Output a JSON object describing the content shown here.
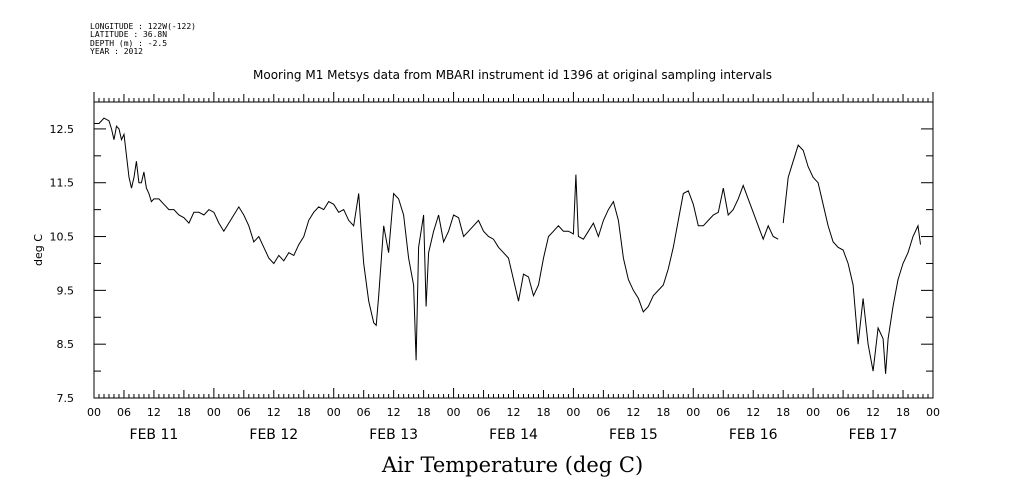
{
  "meta": {
    "longitude": "LONGITUDE : 122W(-122)",
    "latitude": "LATITUDE : 36.8N",
    "depth": "DEPTH (m) : -2.5",
    "year": "YEAR : 2012"
  },
  "chart_data": {
    "type": "line",
    "title": "Mooring M1 Metsys data from MBARI instrument id 1396 at original sampling intervals",
    "xlabel": "Air Temperature (deg C)",
    "ylabel": "deg C",
    "ylim": [
      7.5,
      13.0
    ],
    "xlim_hours": [
      0,
      168
    ],
    "y_ticks": [
      "7.5",
      "8.5",
      "9.5",
      "10.5",
      "11.5",
      "12.5"
    ],
    "x_hour_ticks": [
      "00",
      "06",
      "12",
      "18"
    ],
    "day_labels": [
      "FEB 11",
      "FEB 12",
      "FEB 13",
      "FEB 14",
      "FEB 15",
      "FEB 16",
      "FEB 17"
    ],
    "grid": false,
    "series": [
      {
        "x_unit": "hours since FEB 11 00",
        "points": [
          [
            0,
            12.6
          ],
          [
            1,
            12.6
          ],
          [
            2,
            12.7
          ],
          [
            3,
            12.65
          ],
          [
            3.5,
            12.5
          ],
          [
            4,
            12.3
          ],
          [
            4.5,
            12.55
          ],
          [
            5,
            12.5
          ],
          [
            5.5,
            12.3
          ],
          [
            6,
            12.4
          ],
          [
            6.5,
            12.0
          ],
          [
            7,
            11.6
          ],
          [
            7.5,
            11.4
          ],
          [
            8,
            11.6
          ],
          [
            8.5,
            11.9
          ],
          [
            9,
            11.5
          ],
          [
            9.5,
            11.5
          ],
          [
            10,
            11.7
          ],
          [
            10.5,
            11.4
          ],
          [
            11,
            11.3
          ],
          [
            11.5,
            11.15
          ],
          [
            12,
            11.2
          ],
          [
            13,
            11.2
          ],
          [
            14,
            11.1
          ],
          [
            15,
            11.0
          ],
          [
            16,
            11.0
          ],
          [
            17,
            10.9
          ],
          [
            18,
            10.85
          ],
          [
            19,
            10.75
          ],
          [
            20,
            10.95
          ],
          [
            21,
            10.95
          ],
          [
            22,
            10.9
          ],
          [
            23,
            11.0
          ],
          [
            24,
            10.95
          ],
          [
            25,
            10.75
          ],
          [
            26,
            10.6
          ],
          [
            27,
            10.75
          ],
          [
            28,
            10.9
          ],
          [
            29,
            11.05
          ],
          [
            30,
            10.9
          ],
          [
            31,
            10.7
          ],
          [
            32,
            10.4
          ],
          [
            33,
            10.5
          ],
          [
            34,
            10.3
          ],
          [
            35,
            10.1
          ],
          [
            36,
            10.0
          ],
          [
            37,
            10.15
          ],
          [
            38,
            10.05
          ],
          [
            39,
            10.2
          ],
          [
            40,
            10.15
          ],
          [
            41,
            10.35
          ],
          [
            42,
            10.5
          ],
          [
            43,
            10.8
          ],
          [
            44,
            10.95
          ],
          [
            45,
            11.05
          ],
          [
            46,
            11.0
          ],
          [
            47,
            11.15
          ],
          [
            48,
            11.1
          ],
          [
            49,
            10.95
          ],
          [
            50,
            11.0
          ],
          [
            51,
            10.8
          ],
          [
            52,
            10.7
          ],
          [
            53,
            11.3
          ],
          [
            53.5,
            10.6
          ],
          [
            54,
            10.0
          ],
          [
            55,
            9.3
          ],
          [
            56,
            8.9
          ],
          [
            56.5,
            8.85
          ],
          [
            57,
            9.4
          ],
          [
            58,
            10.7
          ],
          [
            59,
            10.2
          ],
          [
            60,
            11.3
          ],
          [
            61,
            11.2
          ],
          [
            62,
            10.9
          ],
          [
            63,
            10.1
          ],
          [
            64,
            9.6
          ],
          [
            64.5,
            8.2
          ],
          [
            65,
            10.3
          ],
          [
            66,
            10.9
          ],
          [
            66.5,
            9.2
          ],
          [
            67,
            10.2
          ],
          [
            68,
            10.6
          ],
          [
            69,
            10.9
          ],
          [
            70,
            10.4
          ],
          [
            71,
            10.6
          ],
          [
            72,
            10.9
          ],
          [
            73,
            10.85
          ],
          [
            74,
            10.5
          ],
          [
            75,
            10.6
          ],
          [
            76,
            10.7
          ],
          [
            77,
            10.8
          ],
          [
            78,
            10.6
          ],
          [
            79,
            10.5
          ],
          [
            80,
            10.45
          ],
          [
            81,
            10.3
          ],
          [
            82,
            10.2
          ],
          [
            83,
            10.1
          ],
          [
            84,
            9.7
          ],
          [
            85,
            9.3
          ],
          [
            86,
            9.8
          ],
          [
            87,
            9.75
          ],
          [
            88,
            9.4
          ],
          [
            89,
            9.6
          ],
          [
            90,
            10.1
          ],
          [
            91,
            10.5
          ],
          [
            92,
            10.6
          ],
          [
            93,
            10.7
          ],
          [
            94,
            10.6
          ],
          [
            95,
            10.6
          ],
          [
            96,
            10.55
          ],
          [
            96.5,
            11.65
          ],
          [
            97,
            10.5
          ],
          [
            98,
            10.45
          ],
          [
            99,
            10.6
          ],
          [
            100,
            10.75
          ],
          [
            101,
            10.5
          ],
          [
            102,
            10.8
          ],
          [
            103,
            11.0
          ],
          [
            104,
            11.15
          ],
          [
            105,
            10.8
          ],
          [
            106,
            10.1
          ],
          [
            107,
            9.7
          ],
          [
            108,
            9.5
          ],
          [
            109,
            9.35
          ],
          [
            110,
            9.1
          ],
          [
            111,
            9.2
          ],
          [
            112,
            9.4
          ],
          [
            113,
            9.5
          ],
          [
            114,
            9.6
          ],
          [
            115,
            9.9
          ],
          [
            116,
            10.3
          ],
          [
            117,
            10.8
          ],
          [
            118,
            11.3
          ],
          [
            119,
            11.35
          ],
          [
            120,
            11.1
          ],
          [
            121,
            10.7
          ],
          [
            122,
            10.7
          ],
          [
            123,
            10.8
          ],
          [
            124,
            10.9
          ],
          [
            125,
            10.95
          ],
          [
            126,
            11.4
          ],
          [
            127,
            10.9
          ],
          [
            128,
            11.0
          ],
          [
            129,
            11.2
          ],
          [
            130,
            11.45
          ],
          [
            131,
            11.2
          ],
          [
            132,
            10.95
          ],
          [
            133,
            10.7
          ],
          [
            134,
            10.45
          ],
          [
            135,
            10.7
          ],
          [
            136,
            10.5
          ],
          [
            137,
            10.45
          ],
          [
            137.5,
            null
          ],
          [
            138,
            10.75
          ],
          [
            139,
            11.6
          ],
          [
            140,
            11.9
          ],
          [
            141,
            12.2
          ],
          [
            142,
            12.1
          ],
          [
            143,
            11.8
          ],
          [
            144,
            11.6
          ],
          [
            145,
            11.5
          ],
          [
            146,
            11.1
          ],
          [
            147,
            10.7
          ],
          [
            148,
            10.4
          ],
          [
            149,
            10.3
          ],
          [
            150,
            10.25
          ],
          [
            151,
            10.0
          ],
          [
            152,
            9.6
          ],
          [
            153,
            8.5
          ],
          [
            154,
            9.35
          ],
          [
            155,
            8.5
          ],
          [
            156,
            8.0
          ],
          [
            157,
            8.8
          ],
          [
            158,
            8.6
          ],
          [
            158.5,
            7.95
          ],
          [
            159,
            8.6
          ],
          [
            160,
            9.2
          ],
          [
            161,
            9.7
          ],
          [
            162,
            10.0
          ],
          [
            163,
            10.2
          ],
          [
            164,
            10.5
          ],
          [
            165,
            10.7
          ],
          [
            165.5,
            10.35
          ]
        ]
      }
    ]
  }
}
